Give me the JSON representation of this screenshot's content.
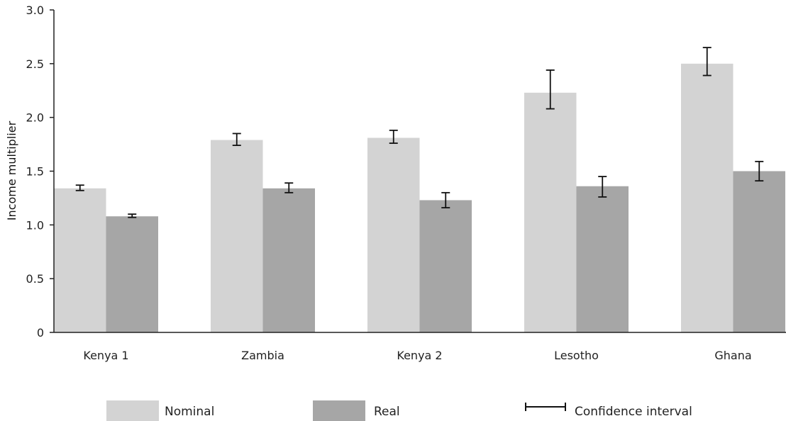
{
  "chart_data": {
    "type": "bar",
    "title": "",
    "xlabel": "",
    "ylabel": "Income multiplier",
    "ylim": [
      0,
      3.0
    ],
    "yticks": [
      0,
      0.5,
      1.0,
      1.5,
      2.0,
      2.5,
      3.0
    ],
    "ytick_labels": [
      "0",
      "0.5",
      "1.0",
      "1.5",
      "2.0",
      "2.5",
      "3.0"
    ],
    "categories": [
      "Kenya 1",
      "Zambia",
      "Kenya 2",
      "Lesotho",
      "Ghana"
    ],
    "grid": false,
    "legend_position": "bottom",
    "series": [
      {
        "name": "Nominal",
        "color": "#d3d3d3",
        "values": [
          1.34,
          1.79,
          1.81,
          2.23,
          2.5
        ],
        "ci_low": [
          1.32,
          1.74,
          1.76,
          2.08,
          2.39
        ],
        "ci_high": [
          1.37,
          1.85,
          1.88,
          2.44,
          2.65
        ]
      },
      {
        "name": "Real",
        "color": "#a6a6a6",
        "values": [
          1.08,
          1.34,
          1.23,
          1.36,
          1.5
        ],
        "ci_low": [
          1.07,
          1.3,
          1.16,
          1.26,
          1.41
        ],
        "ci_high": [
          1.1,
          1.39,
          1.3,
          1.45,
          1.59
        ]
      }
    ],
    "legend_ci_label": "Confidence interval"
  }
}
